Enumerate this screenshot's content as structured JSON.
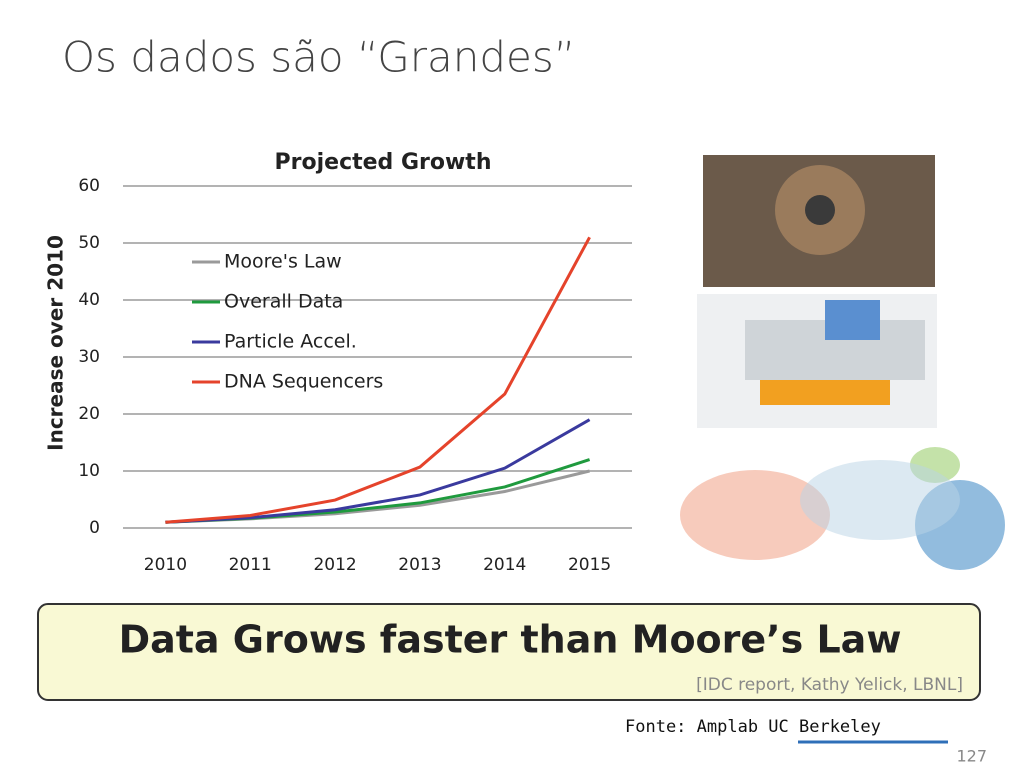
{
  "slide_title": "Os dados são “Grandes”",
  "chart_data": {
    "type": "line",
    "title": "Projected Growth",
    "y_label": "Increase over 2010",
    "categories": [
      "2010",
      "2011",
      "2012",
      "2013",
      "2014",
      "2015"
    ],
    "series": [
      {
        "name": "Moore's Law",
        "color": "#9a9a9a",
        "values": [
          1,
          1.6,
          2.5,
          4,
          6.4,
          10
        ]
      },
      {
        "name": "Overall Data",
        "color": "#1f9a3e",
        "values": [
          1,
          1.7,
          2.8,
          4.4,
          7.2,
          12
        ]
      },
      {
        "name": "Particle Accel.",
        "color": "#3a3a9e",
        "values": [
          1,
          1.8,
          3.2,
          5.8,
          10.5,
          19
        ]
      },
      {
        "name": "DNA Sequencers",
        "color": "#e5432b",
        "values": [
          1,
          2.2,
          4.9,
          10.7,
          23.5,
          51
        ]
      }
    ],
    "ylim": [
      0,
      60
    ],
    "yticks": [
      0,
      10,
      20,
      30,
      40,
      50,
      60
    ],
    "grid": true,
    "legend": "upper-left"
  },
  "banner": {
    "text": "Data Grows faster than Moore’s Law",
    "citation": "[IDC report, Kathy Yelick, LBNL]"
  },
  "source": "Fonte: Amplab UC Berkeley",
  "page_number": "127"
}
